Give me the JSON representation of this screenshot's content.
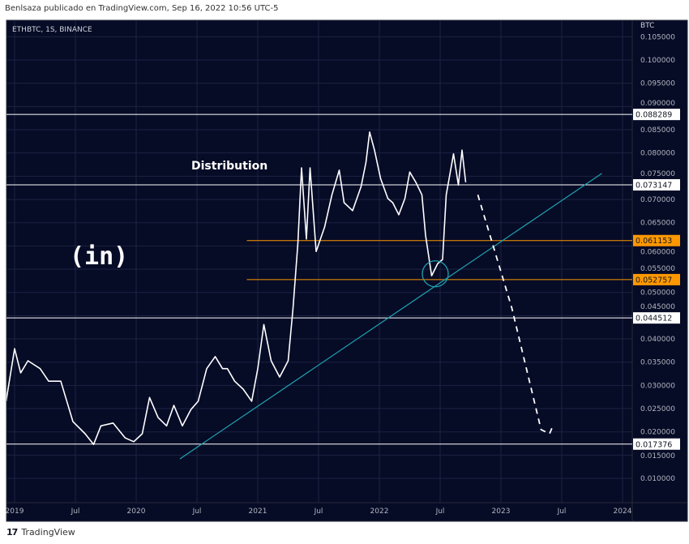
{
  "header": {
    "publisher_line": "Benlsaza publicado en TradingView.com, Sep 16, 2022 10:56 UTC-5"
  },
  "footer": {
    "logo_glyph": "17",
    "brand": "TradingView"
  },
  "colors": {
    "background": "#060b26",
    "grid": "#1c2342",
    "price": "#ffffff",
    "white_level": "#ffffff",
    "orange_level": "#ff9800",
    "trendline": "#1fa3b0"
  },
  "chart_data": {
    "type": "line",
    "symbol": "ETHBTC, 1S, BINANCE",
    "axis_unit": "BTC",
    "annotation_text": "Distribution",
    "watermark_text": "(in)",
    "ylim": [
      0.0065,
      0.1065
    ],
    "xlim": [
      2018.93,
      2024.08
    ],
    "y_ticks": [
      "0.105000",
      "0.100000",
      "0.095000",
      "0.090000",
      "0.085000",
      "0.080000",
      "0.075000",
      "0.070000",
      "0.065000",
      "0.060000",
      "0.055000",
      "0.050000",
      "0.045000",
      "0.040000",
      "0.035000",
      "0.030000",
      "0.025000",
      "0.020000",
      "0.015000",
      "0.010000"
    ],
    "x_ticks": [
      {
        "label": "2019",
        "x": 2019.0
      },
      {
        "label": "Jul",
        "x": 2019.5
      },
      {
        "label": "2020",
        "x": 2020.0
      },
      {
        "label": "Jul",
        "x": 2020.5
      },
      {
        "label": "2021",
        "x": 2021.0
      },
      {
        "label": "Jul",
        "x": 2021.5
      },
      {
        "label": "2022",
        "x": 2022.0
      },
      {
        "label": "Jul",
        "x": 2022.5
      },
      {
        "label": "2023",
        "x": 2023.0
      },
      {
        "label": "Jul",
        "x": 2023.5
      },
      {
        "label": "2024",
        "x": 2024.0
      }
    ],
    "price_series": {
      "name": "ETHBTC",
      "x": [
        2018.93,
        2019.0,
        2019.05,
        2019.11,
        2019.21,
        2019.28,
        2019.38,
        2019.48,
        2019.58,
        2019.65,
        2019.71,
        2019.81,
        2019.91,
        2019.98,
        2020.05,
        2020.11,
        2020.18,
        2020.25,
        2020.31,
        2020.38,
        2020.45,
        2020.51,
        2020.58,
        2020.65,
        2020.71,
        2020.75,
        2020.81,
        2020.88,
        2020.95,
        2021.0,
        2021.05,
        2021.11,
        2021.18,
        2021.25,
        2021.29,
        2021.33,
        2021.36,
        2021.4,
        2021.43,
        2021.48,
        2021.55,
        2021.61,
        2021.67,
        2021.71,
        2021.78,
        2021.85,
        2021.89,
        2021.92,
        2021.96,
        2022.01,
        2022.07,
        2022.11,
        2022.16,
        2022.21,
        2022.25,
        2022.3,
        2022.35,
        2022.38,
        2022.43,
        2022.48,
        2022.52,
        2022.55,
        2022.61,
        2022.65,
        2022.68,
        2022.71
      ],
      "y": [
        0.0266,
        0.0379,
        0.0327,
        0.0353,
        0.0336,
        0.0309,
        0.0309,
        0.0222,
        0.0196,
        0.0173,
        0.0213,
        0.0219,
        0.0187,
        0.0179,
        0.0196,
        0.0274,
        0.0231,
        0.0213,
        0.0257,
        0.0213,
        0.0248,
        0.0266,
        0.0336,
        0.0362,
        0.0336,
        0.0336,
        0.0309,
        0.0292,
        0.0266,
        0.0336,
        0.0431,
        0.0353,
        0.0318,
        0.0353,
        0.0466,
        0.0606,
        0.0768,
        0.0615,
        0.0768,
        0.0588,
        0.0641,
        0.071,
        0.0763,
        0.0693,
        0.0676,
        0.0728,
        0.078,
        0.0845,
        0.0806,
        0.0745,
        0.0702,
        0.0693,
        0.0667,
        0.0702,
        0.0759,
        0.0737,
        0.071,
        0.0623,
        0.0536,
        0.0562,
        0.0571,
        0.071,
        0.0798,
        0.0731,
        0.0806,
        0.0737
      ]
    },
    "projection_series": {
      "name": "projection (dashed)",
      "x": [
        2022.81,
        2023.09,
        2023.33,
        2023.4,
        2023.43
      ],
      "y": [
        0.071,
        0.0466,
        0.0205,
        0.0196,
        0.0215
      ]
    },
    "trendline": {
      "x": [
        2020.36,
        2023.83
      ],
      "y": [
        0.0142,
        0.0756
      ]
    },
    "circle_marker": {
      "x": 2022.46,
      "y": 0.054
    },
    "levels": [
      {
        "value": 0.088289,
        "label": "0.088289",
        "color": "white",
        "from_x": 2018.93
      },
      {
        "value": 0.073147,
        "label": "0.073147",
        "color": "white",
        "from_x": 2018.93
      },
      {
        "value": 0.061153,
        "label": "0.061153",
        "color": "orange",
        "from_x": 2020.91
      },
      {
        "value": 0.052757,
        "label": "0.052757",
        "color": "orange",
        "from_x": 2020.91
      },
      {
        "value": 0.044512,
        "label": "0.044512",
        "color": "white",
        "from_x": 2018.93
      },
      {
        "value": 0.017376,
        "label": "0.017376",
        "color": "white",
        "from_x": 2018.93
      }
    ]
  }
}
